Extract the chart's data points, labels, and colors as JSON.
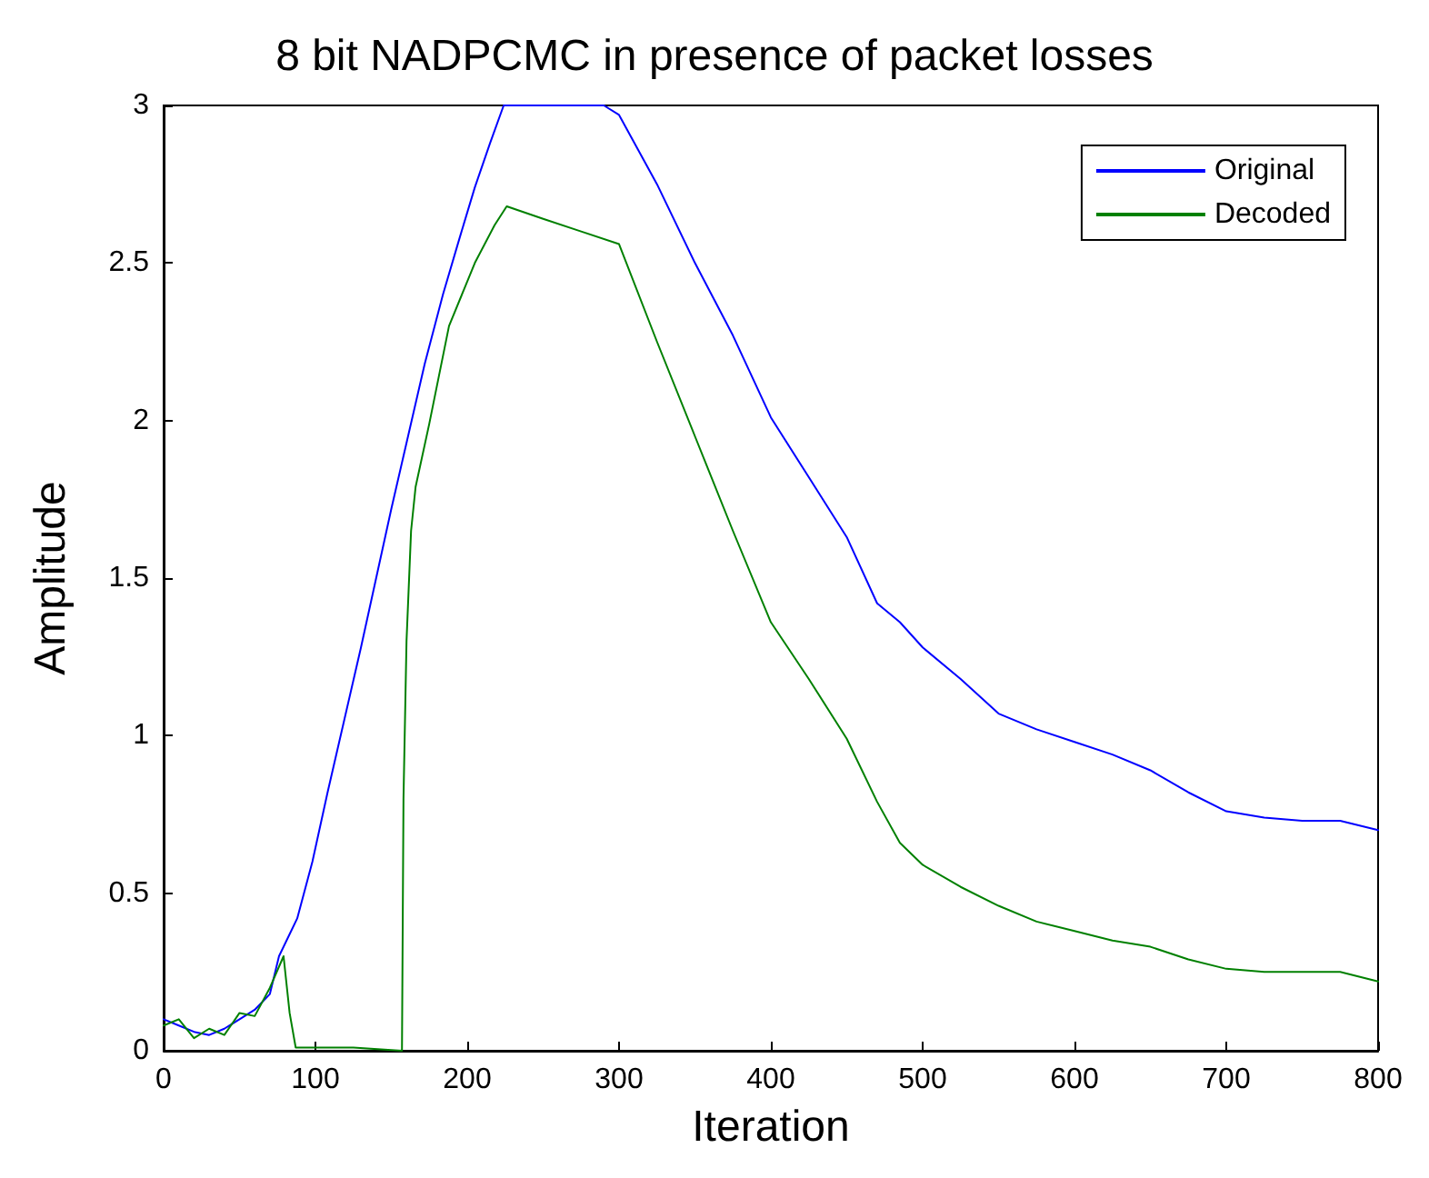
{
  "chart_data": {
    "type": "line",
    "title": "8 bit NADPCMC in presence of packet losses",
    "xlabel": "Iteration",
    "ylabel": "Amplitude",
    "xlim": [
      0,
      800
    ],
    "xticks": [
      0,
      100,
      200,
      300,
      400,
      500,
      600,
      700,
      800
    ],
    "ylim": [
      0,
      3
    ],
    "yticks": [
      0,
      0.5,
      1,
      1.5,
      2,
      2.5,
      3
    ],
    "legend": "top right",
    "grid": false,
    "marker": "none",
    "line_style": "solid",
    "series": [
      {
        "name": "Original",
        "color": "#0000ff",
        "x": [
          0,
          10,
          20,
          30,
          40,
          50,
          60,
          70,
          76,
          88,
          98,
          108,
          119,
          130,
          140,
          150,
          161,
          172,
          184,
          195,
          205,
          215,
          224,
          260,
          290,
          300,
          325,
          350,
          375,
          400,
          425,
          450,
          470,
          485,
          500,
          525,
          550,
          575,
          600,
          625,
          650,
          675,
          700,
          725,
          750,
          775,
          800
        ],
        "values": [
          0.1,
          0.08,
          0.06,
          0.05,
          0.07,
          0.1,
          0.13,
          0.18,
          0.3,
          0.42,
          0.6,
          0.82,
          1.05,
          1.28,
          1.5,
          1.72,
          1.95,
          2.18,
          2.4,
          2.58,
          2.74,
          2.88,
          3,
          3,
          3,
          2.97,
          2.75,
          2.5,
          2.27,
          2.01,
          1.82,
          1.63,
          1.42,
          1.36,
          1.28,
          1.18,
          1.07,
          1.02,
          0.98,
          0.94,
          0.89,
          0.82,
          0.76,
          0.74,
          0.73,
          0.73,
          0.7
        ]
      },
      {
        "name": "Decoded",
        "color": "#008000",
        "x": [
          0,
          10,
          20,
          30,
          40,
          50,
          60,
          70,
          79,
          83,
          87,
          100,
          125,
          157,
          158,
          160,
          163,
          166,
          175,
          188,
          205,
          218,
          226,
          250,
          275,
          300,
          325,
          350,
          375,
          400,
          425,
          450,
          470,
          485,
          500,
          525,
          550,
          575,
          600,
          625,
          650,
          675,
          700,
          725,
          750,
          775,
          800
        ],
        "values": [
          0.08,
          0.1,
          0.04,
          0.07,
          0.05,
          0.12,
          0.11,
          0.2,
          0.3,
          0.12,
          0.01,
          0.01,
          0.01,
          0,
          0.8,
          1.3,
          1.65,
          1.79,
          1.99,
          2.3,
          2.5,
          2.62,
          2.68,
          2.64,
          2.6,
          2.56,
          2.25,
          1.95,
          1.65,
          1.36,
          1.18,
          0.99,
          0.79,
          0.66,
          0.59,
          0.52,
          0.46,
          0.41,
          0.38,
          0.35,
          0.33,
          0.29,
          0.26,
          0.25,
          0.25,
          0.25,
          0.22
        ]
      }
    ]
  }
}
